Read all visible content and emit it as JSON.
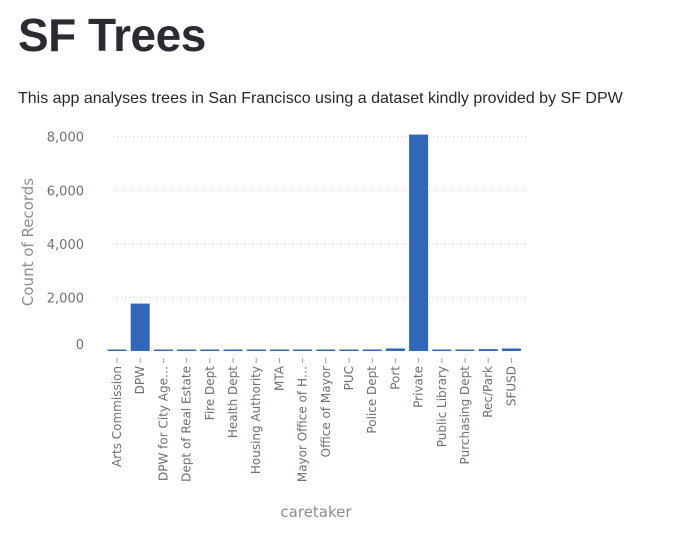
{
  "page": {
    "title": "SF Trees",
    "subtitle": "This app analyses trees in San Francisco using a dataset kindly provided by SF DPW"
  },
  "chart_data": {
    "type": "bar",
    "xlabel": "caretaker",
    "ylabel": "Count of Records",
    "categories": [
      "Arts Commission",
      "DPW",
      "DPW for City Age…",
      "Dept of Real Estate",
      "Fire Dept",
      "Health Dept",
      "Housing Authority",
      "MTA",
      "Mayor Office of H…",
      "Office of Mayor",
      "PUC",
      "Police Dept",
      "Port",
      "Private",
      "Public Library",
      "Purchasing Dept",
      "Rec/Park",
      "SFUSD"
    ],
    "values": [
      5,
      1770,
      40,
      15,
      20,
      10,
      8,
      5,
      5,
      5,
      30,
      5,
      95,
      8080,
      10,
      5,
      70,
      95
    ],
    "y_ticks": [
      0,
      2000,
      4000,
      6000,
      8000
    ],
    "y_tick_labels": [
      "0",
      "2,000",
      "4,000",
      "6,000",
      "8,000"
    ],
    "ylim": [
      0,
      8250
    ],
    "grid": true,
    "bar_color": "#3067b6"
  }
}
